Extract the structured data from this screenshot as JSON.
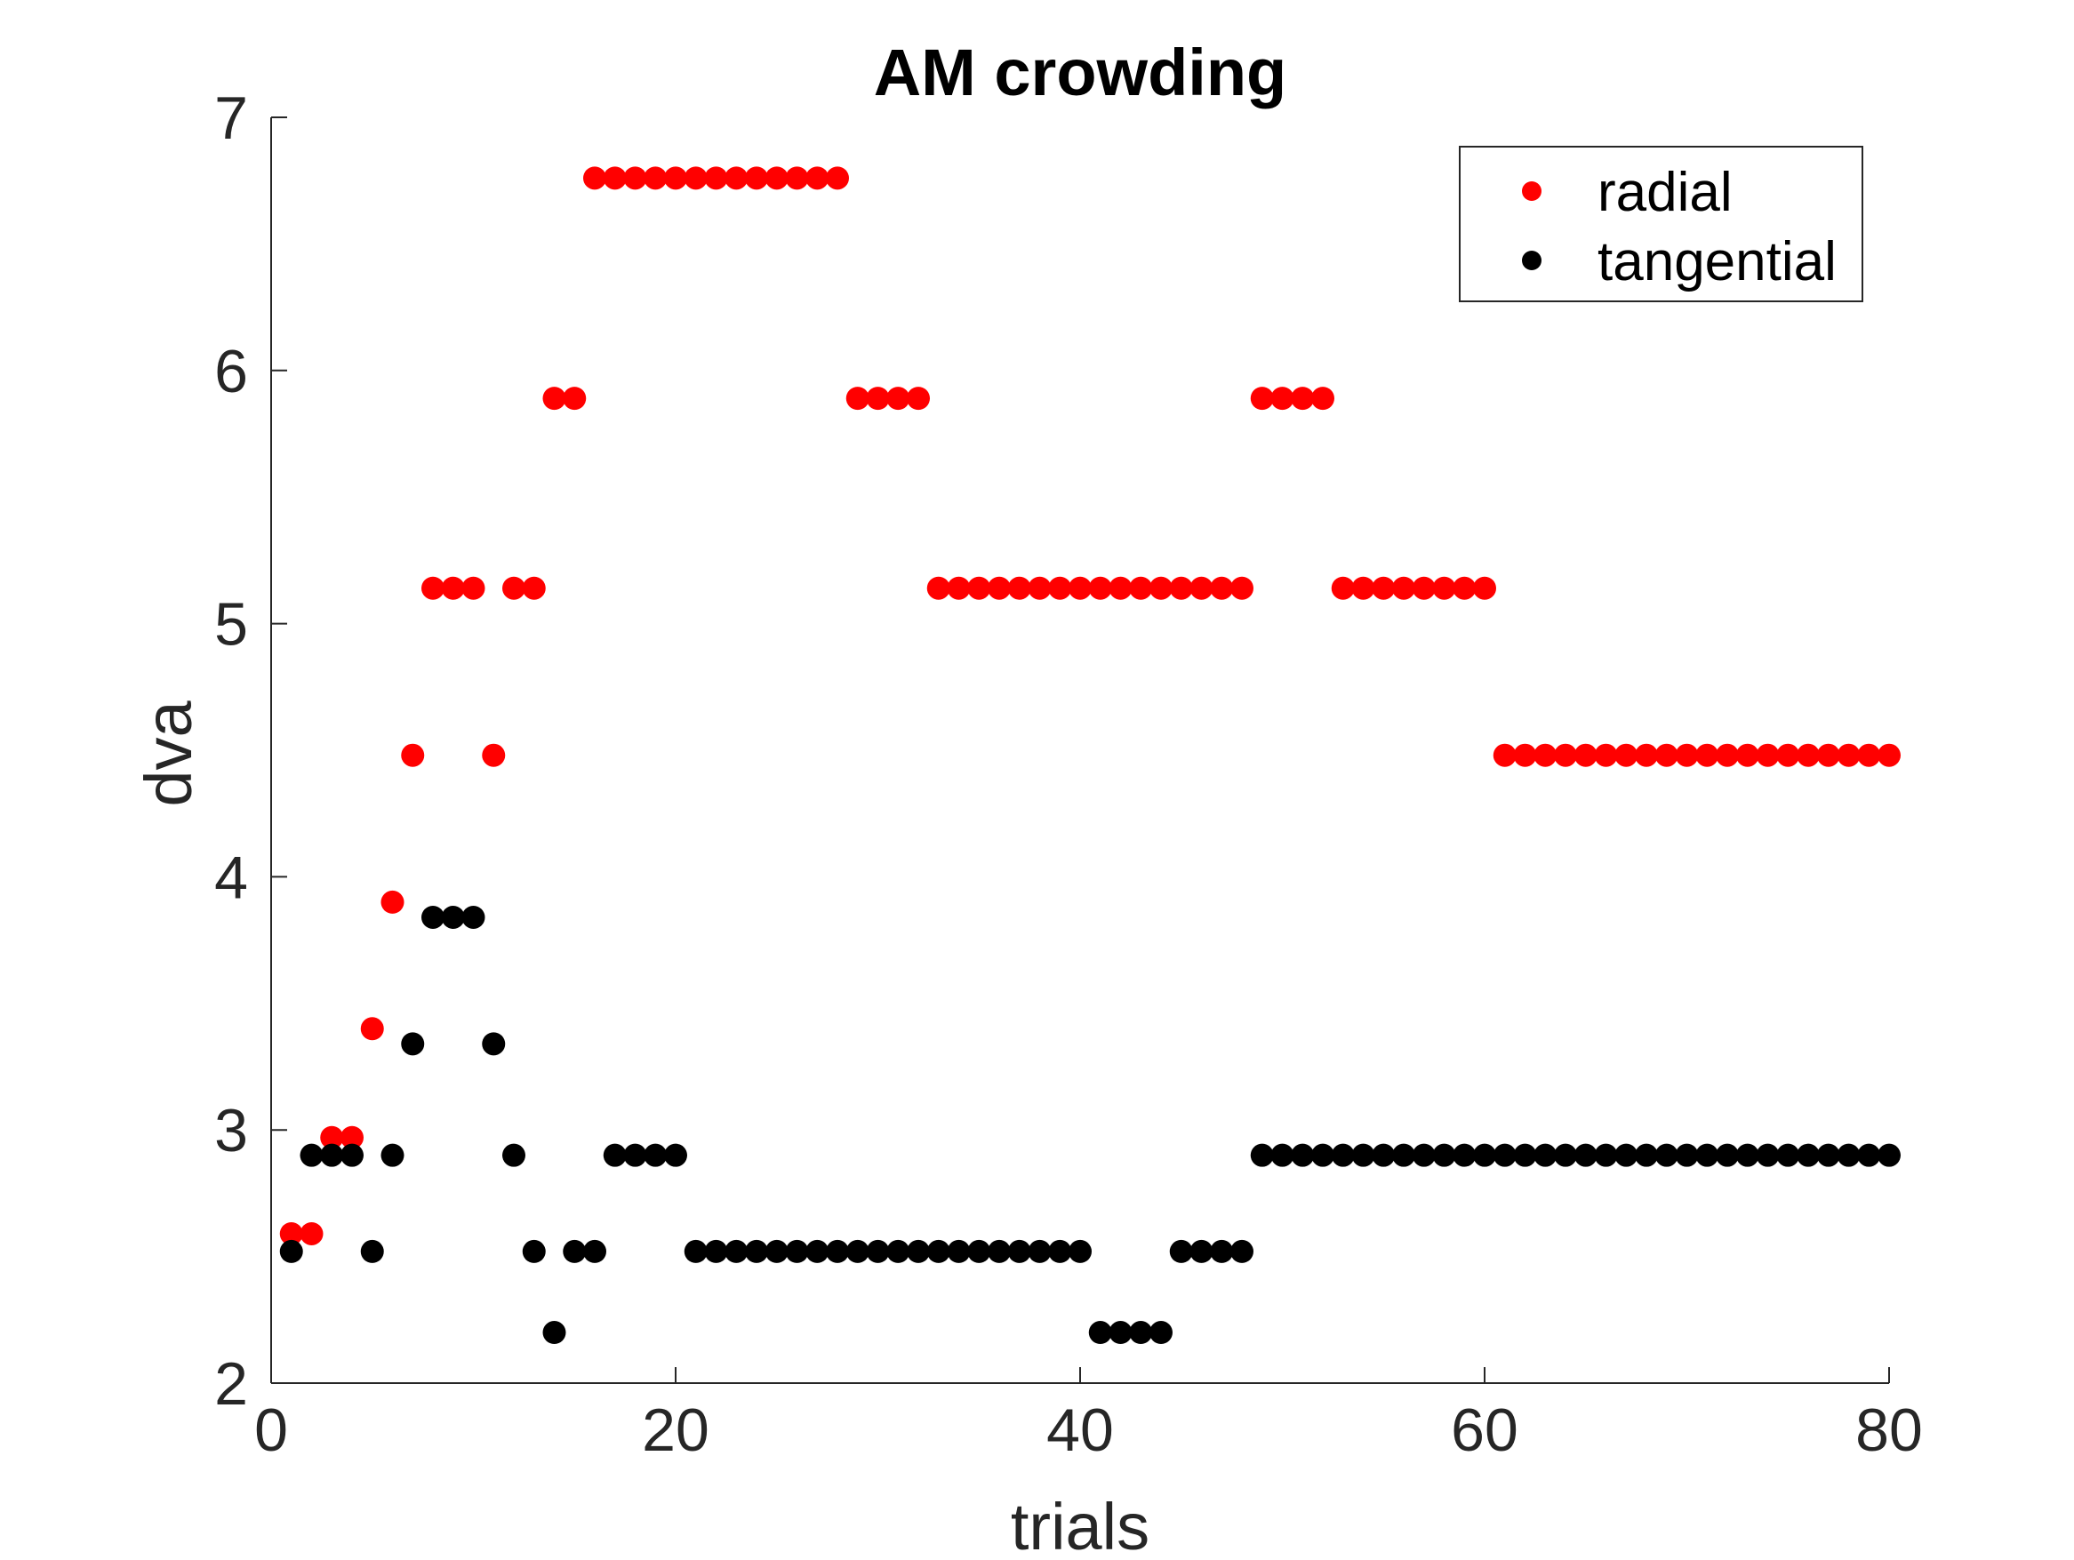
{
  "chart_data": {
    "type": "scatter",
    "title": "AM crowding",
    "xlabel": "trials",
    "ylabel": "dva",
    "xlim": [
      0,
      80
    ],
    "ylim": [
      2,
      7
    ],
    "xticks": [
      0,
      20,
      40,
      60,
      80
    ],
    "yticks": [
      2,
      3,
      4,
      5,
      6,
      7
    ],
    "grid": false,
    "legend_position": "top-right",
    "series": [
      {
        "name": "radial",
        "color": "#ff0000",
        "x": [
          1,
          2,
          3,
          4,
          5,
          6,
          7,
          8,
          9,
          10,
          11,
          12,
          13,
          14,
          15,
          16,
          17,
          18,
          19,
          20,
          21,
          22,
          23,
          24,
          25,
          26,
          27,
          28,
          29,
          30,
          31,
          32,
          33,
          34,
          35,
          36,
          37,
          38,
          39,
          40,
          41,
          42,
          43,
          44,
          45,
          46,
          47,
          48,
          49,
          50,
          51,
          52,
          53,
          54,
          55,
          56,
          57,
          58,
          59,
          60,
          61,
          62,
          63,
          64,
          65,
          66,
          67,
          68,
          69,
          70,
          71,
          72,
          73,
          74,
          75,
          76,
          77,
          78,
          79,
          80
        ],
        "y": [
          2.59,
          2.59,
          2.97,
          2.97,
          3.4,
          3.9,
          4.48,
          5.14,
          5.14,
          5.14,
          4.48,
          5.14,
          5.14,
          5.89,
          5.89,
          6.76,
          6.76,
          6.76,
          6.76,
          6.76,
          6.76,
          6.76,
          6.76,
          6.76,
          6.76,
          6.76,
          6.76,
          6.76,
          5.89,
          5.89,
          5.89,
          5.89,
          5.14,
          5.14,
          5.14,
          5.14,
          5.14,
          5.14,
          5.14,
          5.14,
          5.14,
          5.14,
          5.14,
          5.14,
          5.14,
          5.14,
          5.14,
          5.14,
          5.89,
          5.89,
          5.89,
          5.89,
          5.14,
          5.14,
          5.14,
          5.14,
          5.14,
          5.14,
          5.14,
          5.14,
          4.48,
          4.48,
          4.48,
          4.48,
          4.48,
          4.48,
          4.48,
          4.48,
          4.48,
          4.48,
          4.48,
          4.48,
          4.48,
          4.48,
          4.48,
          4.48,
          4.48,
          4.48,
          4.48,
          4.48
        ]
      },
      {
        "name": "tangential",
        "color": "#000000",
        "x": [
          1,
          2,
          3,
          4,
          5,
          6,
          7,
          8,
          9,
          10,
          11,
          12,
          13,
          14,
          15,
          16,
          17,
          18,
          19,
          20,
          21,
          22,
          23,
          24,
          25,
          26,
          27,
          28,
          29,
          30,
          31,
          32,
          33,
          34,
          35,
          36,
          37,
          38,
          39,
          40,
          41,
          42,
          43,
          44,
          45,
          46,
          47,
          48,
          49,
          50,
          51,
          52,
          53,
          54,
          55,
          56,
          57,
          58,
          59,
          60,
          61,
          62,
          63,
          64,
          65,
          66,
          67,
          68,
          69,
          70,
          71,
          72,
          73,
          74,
          75,
          76,
          77,
          78,
          79,
          80
        ],
        "y": [
          2.52,
          2.9,
          2.9,
          2.9,
          2.52,
          2.9,
          3.34,
          3.84,
          3.84,
          3.84,
          3.34,
          2.9,
          2.52,
          2.2,
          2.52,
          2.52,
          2.9,
          2.9,
          2.9,
          2.9,
          2.52,
          2.52,
          2.52,
          2.52,
          2.52,
          2.52,
          2.52,
          2.52,
          2.52,
          2.52,
          2.52,
          2.52,
          2.52,
          2.52,
          2.52,
          2.52,
          2.52,
          2.52,
          2.52,
          2.52,
          2.2,
          2.2,
          2.2,
          2.2,
          2.52,
          2.52,
          2.52,
          2.52,
          2.9,
          2.9,
          2.9,
          2.9,
          2.9,
          2.9,
          2.9,
          2.9,
          2.9,
          2.9,
          2.9,
          2.9,
          2.9,
          2.9,
          2.9,
          2.9,
          2.9,
          2.9,
          2.9,
          2.9,
          2.9,
          2.9,
          2.9,
          2.9,
          2.9,
          2.9,
          2.9,
          2.9,
          2.9,
          2.9,
          2.9,
          2.9
        ]
      }
    ]
  }
}
